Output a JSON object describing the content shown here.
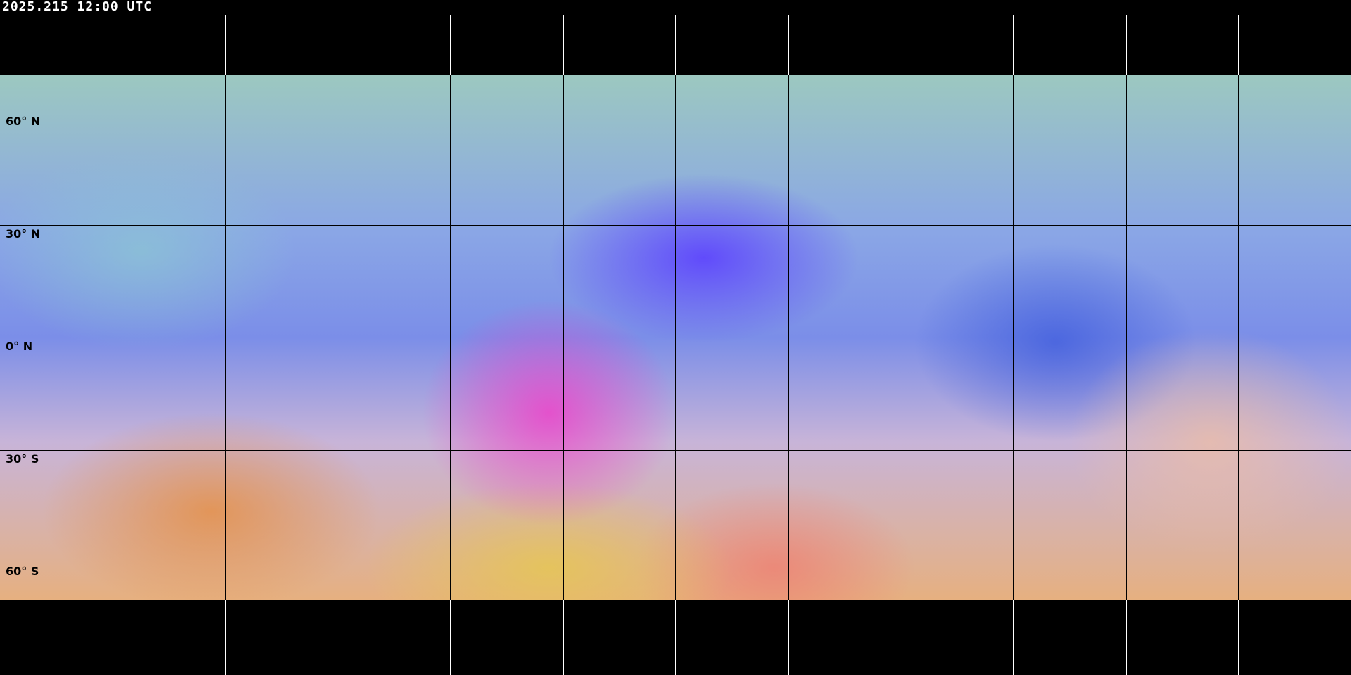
{
  "timestamp": "2025.215 12:00 UTC",
  "map": {
    "projection": "equirectangular",
    "imagery": "false-color satellite composite",
    "grid_spacing_degrees": 30,
    "coastline_color_land": "#000000",
    "coastline_color_polar": "#ffffff",
    "latitude_labels": [
      "60° N",
      "30° N",
      "0° N",
      "30° S",
      "60° S"
    ]
  }
}
